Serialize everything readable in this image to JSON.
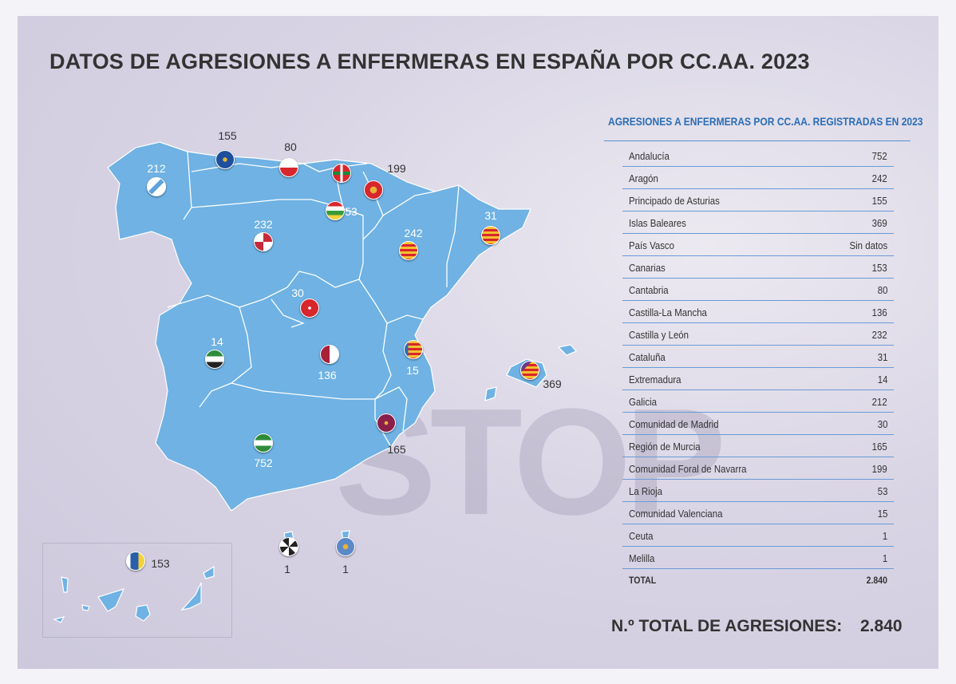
{
  "title": "DATOS DE AGRESIONES A ENFERMERAS EN ESPAÑA POR CC.AA. 2023",
  "watermark": "STOP",
  "colors": {
    "map_fill": "#6fb2e3",
    "table_title": "#2a6db5",
    "text": "#333333",
    "background": "#d9d5e5"
  },
  "map": {
    "labels": {
      "galicia": "212",
      "asturias": "155",
      "cantabria": "80",
      "navarra": "199",
      "la_rioja": "53",
      "castilla_leon": "232",
      "aragon": "242",
      "cataluna": "31",
      "madrid": "30",
      "extremadura": "14",
      "castilla_la_mancha": "136",
      "valenciana": "15",
      "baleares": "369",
      "murcia": "165",
      "andalucia": "752",
      "canarias": "153",
      "ceuta": "1",
      "melilla": "1"
    }
  },
  "table": {
    "title": "AGRESIONES A ENFERMERAS POR CC.AA. REGISTRADAS EN 2023",
    "rows": [
      {
        "name": "Andalucía",
        "value": "752"
      },
      {
        "name": "Aragón",
        "value": "242"
      },
      {
        "name": "Principado de Asturias",
        "value": "155"
      },
      {
        "name": "Islas Baleares",
        "value": "369"
      },
      {
        "name": "País Vasco",
        "value": "Sin datos"
      },
      {
        "name": "Canarias",
        "value": "153"
      },
      {
        "name": "Cantabria",
        "value": "80"
      },
      {
        "name": "Castilla-La Mancha",
        "value": "136"
      },
      {
        "name": "Castilla y León",
        "value": "232"
      },
      {
        "name": "Cataluña",
        "value": "31"
      },
      {
        "name": "Extremadura",
        "value": "14"
      },
      {
        "name": "Galicia",
        "value": "212"
      },
      {
        "name": "Comunidad de Madrid",
        "value": "30"
      },
      {
        "name": "Región de Murcia",
        "value": "165"
      },
      {
        "name": "Comunidad Foral de Navarra",
        "value": "199"
      },
      {
        "name": "La Rioja",
        "value": "53"
      },
      {
        "name": "Comunidad Valenciana",
        "value": "15"
      },
      {
        "name": "Ceuta",
        "value": "1"
      },
      {
        "name": "Melilla",
        "value": "1"
      }
    ],
    "total_label": "TOTAL",
    "total_value": "2.840"
  },
  "grand_total": {
    "label": "N.º TOTAL DE AGRESIONES:",
    "value": "2.840"
  }
}
